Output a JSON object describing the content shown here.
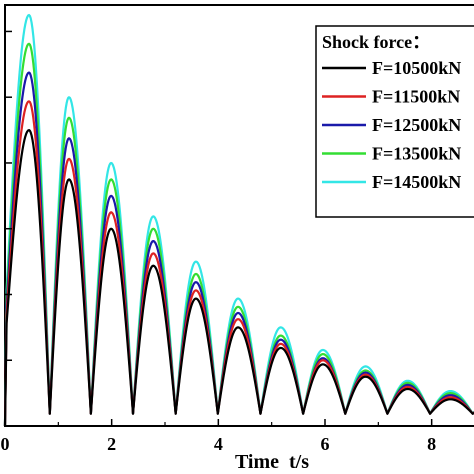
{
  "chart_data": {
    "type": "line",
    "xlabel": "Time  t/s",
    "ylabel": "",
    "xlim": [
      0,
      9.0
    ],
    "ylim": [
      0,
      1.0
    ],
    "xticks": [
      0,
      2,
      4,
      6,
      8
    ],
    "xtick_labels": [
      "0",
      "2",
      "4",
      "6",
      "8"
    ],
    "yticks": [
      0,
      0.16,
      0.32,
      0.48,
      0.64,
      0.8,
      0.96
    ],
    "legend": {
      "title": "Shock force：",
      "position": "top-right"
    },
    "peaks_t": [
      0.45,
      1.2,
      1.99,
      2.78,
      3.58,
      4.37,
      5.17,
      5.96,
      6.76,
      7.55,
      8.35
    ],
    "troughs_t": [
      0.0,
      0.84,
      1.61,
      2.4,
      3.2,
      3.99,
      4.79,
      5.59,
      6.38,
      7.17,
      7.97,
      8.77
    ],
    "series": [
      {
        "name": "F=10500kN",
        "color": "#000000",
        "peaks": [
          0.72,
          0.6,
          0.48,
          0.39,
          0.31,
          0.24,
          0.19,
          0.15,
          0.12,
          0.09,
          0.065
        ],
        "troughs": [
          0.25,
          0.03,
          0.03,
          0.03,
          0.03,
          0.03,
          0.03,
          0.03,
          0.03,
          0.03,
          0.03,
          0.03
        ]
      },
      {
        "name": "F=11500kN",
        "color": "#dd2222",
        "peaks": [
          0.79,
          0.65,
          0.52,
          0.42,
          0.33,
          0.26,
          0.2,
          0.16,
          0.125,
          0.095,
          0.07
        ],
        "troughs": [
          0.27,
          0.03,
          0.03,
          0.03,
          0.03,
          0.03,
          0.03,
          0.03,
          0.03,
          0.03,
          0.03,
          0.03
        ]
      },
      {
        "name": "F=12500kN",
        "color": "#1a1aaa",
        "peaks": [
          0.86,
          0.7,
          0.56,
          0.45,
          0.35,
          0.275,
          0.21,
          0.165,
          0.13,
          0.1,
          0.075
        ],
        "troughs": [
          0.29,
          0.03,
          0.03,
          0.03,
          0.03,
          0.03,
          0.03,
          0.03,
          0.03,
          0.03,
          0.03,
          0.03
        ]
      },
      {
        "name": "F=13500kN",
        "color": "#33dd33",
        "peaks": [
          0.93,
          0.75,
          0.6,
          0.48,
          0.37,
          0.29,
          0.22,
          0.175,
          0.135,
          0.105,
          0.08
        ],
        "troughs": [
          0.31,
          0.03,
          0.03,
          0.03,
          0.03,
          0.03,
          0.03,
          0.03,
          0.03,
          0.03,
          0.03,
          0.03
        ]
      },
      {
        "name": "F=14500kN",
        "color": "#33e6e6",
        "peaks": [
          1.0,
          0.8,
          0.64,
          0.51,
          0.4,
          0.31,
          0.24,
          0.185,
          0.145,
          0.11,
          0.085
        ],
        "troughs": [
          0.33,
          0.03,
          0.03,
          0.03,
          0.03,
          0.03,
          0.03,
          0.03,
          0.03,
          0.03,
          0.03,
          0.03
        ]
      }
    ]
  }
}
